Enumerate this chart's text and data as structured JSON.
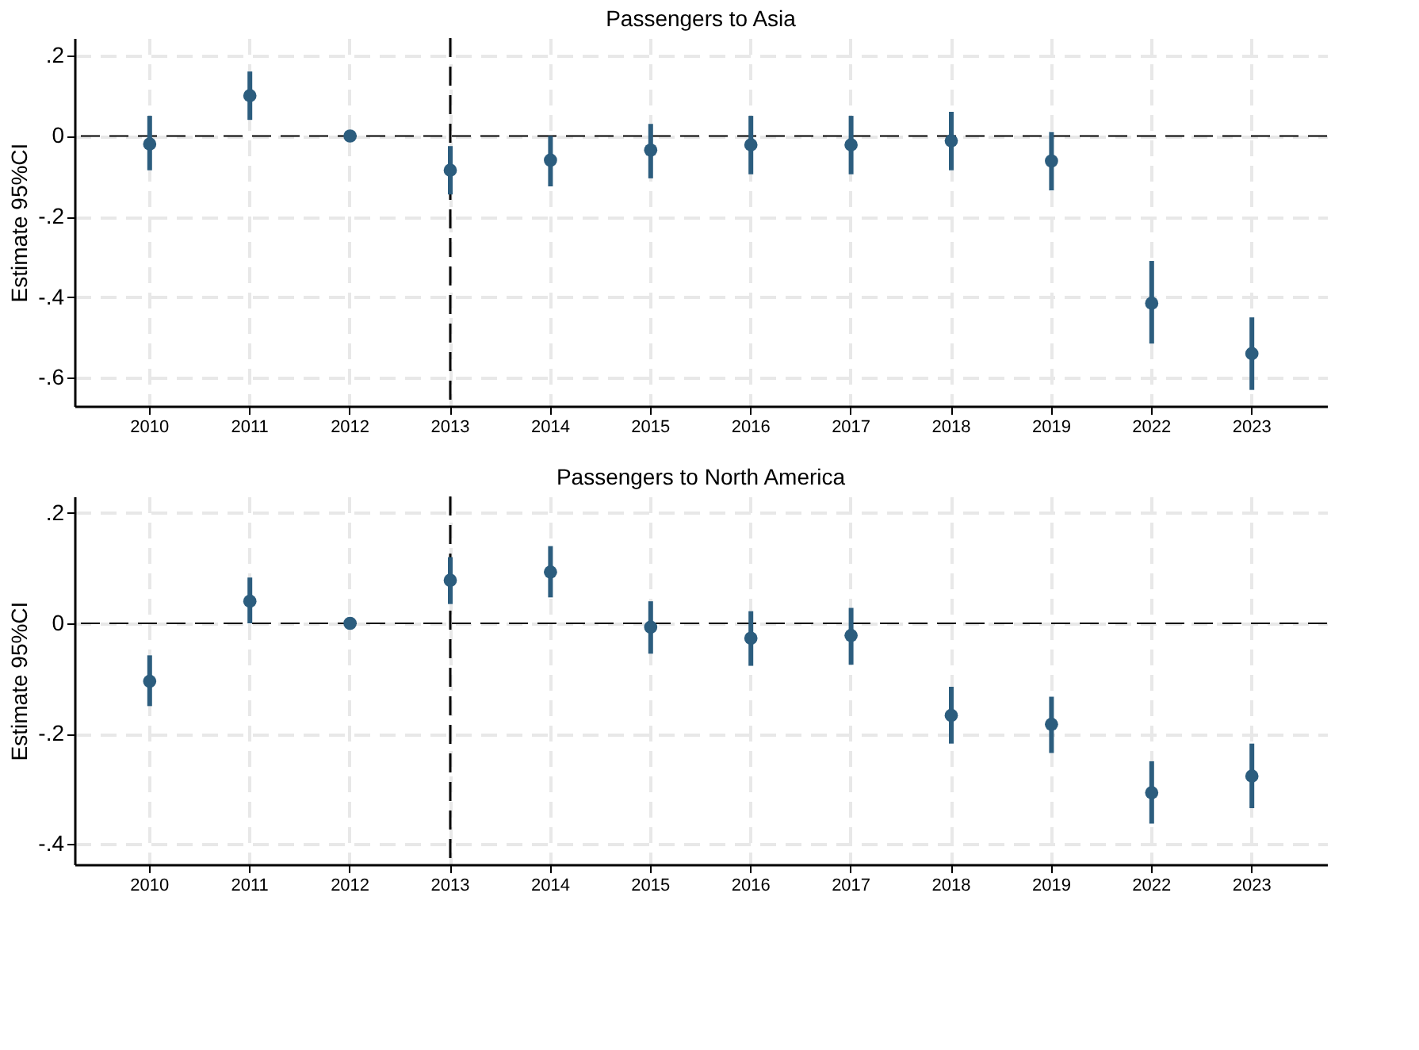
{
  "chart_data": [
    {
      "type": "scatter",
      "title": "Passengers to Asia",
      "ylabel": "Estimate 95%CI",
      "categories": [
        "2010",
        "2011",
        "2012",
        "2013",
        "2014",
        "2015",
        "2016",
        "2017",
        "2018",
        "2019",
        "2022",
        "2023"
      ],
      "series": [
        {
          "color": "#2c5d7e",
          "values": [
            -0.02,
            0.1,
            0,
            -0.085,
            -0.06,
            -0.035,
            -0.022,
            -0.022,
            -0.012,
            -0.062,
            -0.415,
            -0.54
          ],
          "errors": [
            [
              -0.085,
              0.05
            ],
            [
              0.04,
              0.16
            ],
            null,
            [
              -0.145,
              -0.025
            ],
            [
              -0.125,
              0.0
            ],
            [
              -0.105,
              0.03
            ],
            [
              -0.095,
              0.05
            ],
            [
              -0.095,
              0.05
            ],
            [
              -0.085,
              0.06
            ],
            [
              -0.135,
              0.01
            ],
            [
              -0.515,
              -0.31
            ],
            [
              -0.63,
              -0.45
            ]
          ]
        }
      ],
      "ylim": [
        -0.67,
        0.243
      ],
      "yticks": [
        {
          "value": -0.6,
          "label": "-.6"
        },
        {
          "value": -0.4,
          "label": "-.4"
        },
        {
          "value": -0.2,
          "label": "-.2"
        },
        0,
        {
          "value": 0.2,
          "label": ".2"
        }
      ],
      "ref_lines": [
        {
          "axis": "y",
          "value": 0,
          "color": "#000000",
          "line_style": "dashed"
        },
        {
          "axis": "x",
          "value": "2013",
          "color": "#000000",
          "line_style": "dashed"
        }
      ],
      "grid": true,
      "marker": "circle",
      "legend": false
    },
    {
      "type": "scatter",
      "title": "Passengers to North America",
      "ylabel": "Estimate 95%CI",
      "categories": [
        "2010",
        "2011",
        "2012",
        "2013",
        "2014",
        "2015",
        "2016",
        "2017",
        "2018",
        "2019",
        "2022",
        "2023"
      ],
      "series": [
        {
          "color": "#2c5d7e",
          "values": [
            -0.105,
            0.04,
            0,
            0.078,
            0.093,
            -0.007,
            -0.027,
            -0.022,
            -0.167,
            -0.183,
            -0.307,
            -0.277
          ],
          "errors": [
            [
              -0.15,
              -0.058
            ],
            [
              0.0,
              0.083
            ],
            null,
            [
              0.035,
              0.12
            ],
            [
              0.047,
              0.14
            ],
            [
              -0.055,
              0.04
            ],
            [
              -0.077,
              0.022
            ],
            [
              -0.075,
              0.028
            ],
            [
              -0.218,
              -0.115
            ],
            [
              -0.235,
              -0.133
            ],
            [
              -0.363,
              -0.25
            ],
            [
              -0.335,
              -0.218
            ]
          ]
        }
      ],
      "ylim": [
        -0.437,
        0.23
      ],
      "yticks": [
        {
          "value": -0.4,
          "label": "-.4"
        },
        {
          "value": -0.2,
          "label": "-.2"
        },
        0,
        {
          "value": 0.2,
          "label": ".2"
        }
      ],
      "ref_lines": [
        {
          "axis": "y",
          "value": 0,
          "color": "#000000",
          "line_style": "dashed"
        },
        {
          "axis": "x",
          "value": "2013",
          "color": "#000000",
          "line_style": "dashed"
        }
      ],
      "grid": true,
      "marker": "circle",
      "legend": false
    }
  ]
}
